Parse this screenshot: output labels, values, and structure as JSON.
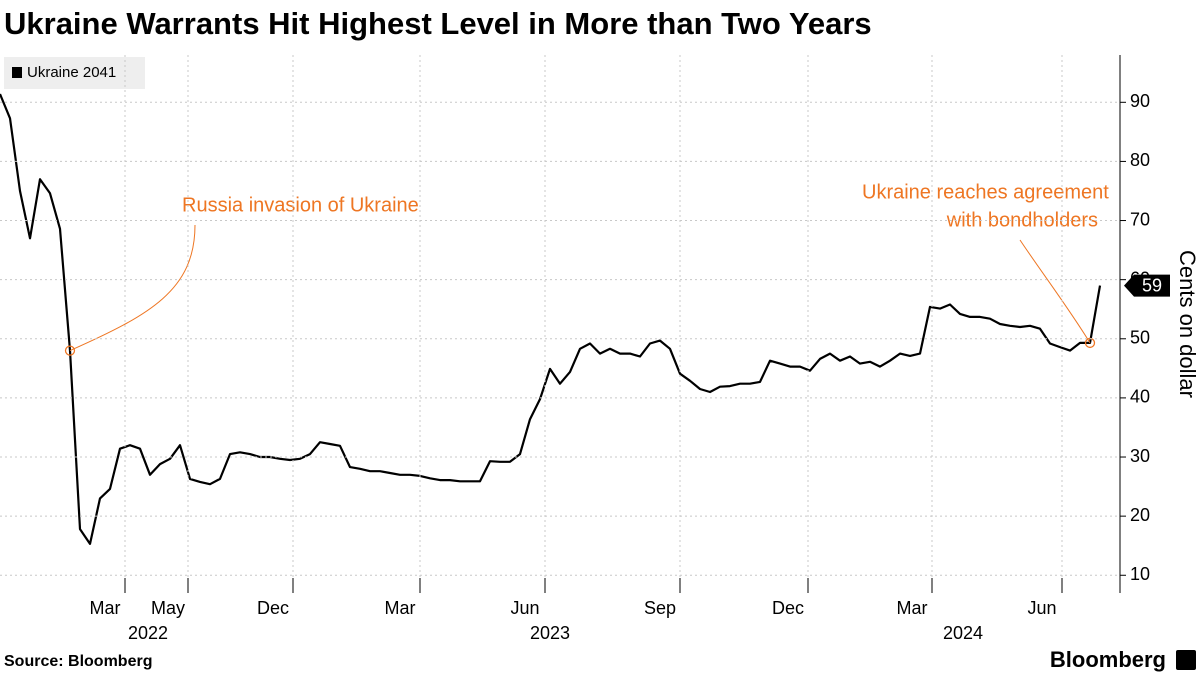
{
  "chart_data": {
    "type": "line",
    "title": "Ukraine Warrants Hit Highest Level in More than Two Years",
    "source": "Source: Bloomberg",
    "brand": "Bloomberg",
    "y_label": "Cents on dollar",
    "series": [
      {
        "name": "Ukraine 2041",
        "color": "#000000",
        "values": [
          91.4,
          87.3,
          75,
          67,
          77,
          74.6,
          68.6,
          48,
          17.8,
          15.3,
          23,
          24.6,
          31.4,
          32,
          31.4,
          27,
          28.8,
          29.7,
          32,
          26.3,
          25.8,
          25.4,
          26.3,
          30.5,
          30.8,
          30.5,
          30,
          30,
          29.7,
          29.5,
          29.7,
          30.5,
          32.5,
          32.2,
          31.9,
          28.3,
          28,
          27.6,
          27.6,
          27.3,
          27,
          27,
          26.8,
          26.4,
          26.1,
          26.1,
          25.9,
          25.9,
          25.9,
          29.3,
          29.2,
          29.2,
          30.5,
          36.4,
          39.8,
          44.9,
          42.4,
          44.4,
          48.3,
          49.2,
          47.5,
          48.3,
          47.5,
          47.5,
          47,
          49.2,
          49.7,
          48.3,
          44.1,
          42.9,
          41.5,
          41,
          41.9,
          42,
          42.4,
          42.4,
          42.7,
          46.3,
          45.8,
          45.3,
          45.3,
          44.6,
          46.6,
          47.5,
          46.3,
          47,
          45.8,
          46.1,
          45.3,
          46.3,
          47.5,
          47.1,
          47.5,
          55.4,
          55.1,
          55.8,
          54.2,
          53.7,
          53.7,
          53.4,
          52.5,
          52.2,
          52,
          52.2,
          51.7,
          49.2,
          48.6,
          48,
          49.3,
          49.3,
          59
        ]
      }
    ],
    "xlim": [
      0,
      112
    ],
    "xticks": [
      {
        "value": 12.5,
        "label": "Mar"
      },
      {
        "value": 18.8,
        "label": "May"
      },
      {
        "value": 29.3,
        "label": "Dec"
      },
      {
        "value": 42,
        "label": "Mar"
      },
      {
        "value": 54.5,
        "label": "Jun"
      },
      {
        "value": 68,
        "label": "Sep"
      },
      {
        "value": 80.8,
        "label": "Dec"
      },
      {
        "value": 93.2,
        "label": "Mar"
      },
      {
        "value": 106.2,
        "label": "Jun"
      }
    ],
    "xyears": [
      {
        "value": 14.8,
        "label": "2022"
      },
      {
        "value": 55,
        "label": "2023"
      },
      {
        "value": 96.3,
        "label": "2024"
      }
    ],
    "ylim": [
      7,
      98
    ],
    "yticks": [
      10,
      20,
      30,
      40,
      50,
      60,
      70,
      80,
      90
    ],
    "grid": true,
    "last_value_label": "59",
    "annotations": [
      {
        "text": [
          "Russia invasion of Ukraine"
        ],
        "x": 7,
        "y": 48
      },
      {
        "text": [
          "Ukraine reaches agreement",
          "with bondholders"
        ],
        "x": 109,
        "y": 49.3
      }
    ],
    "annotation_color": "#ee7623"
  }
}
